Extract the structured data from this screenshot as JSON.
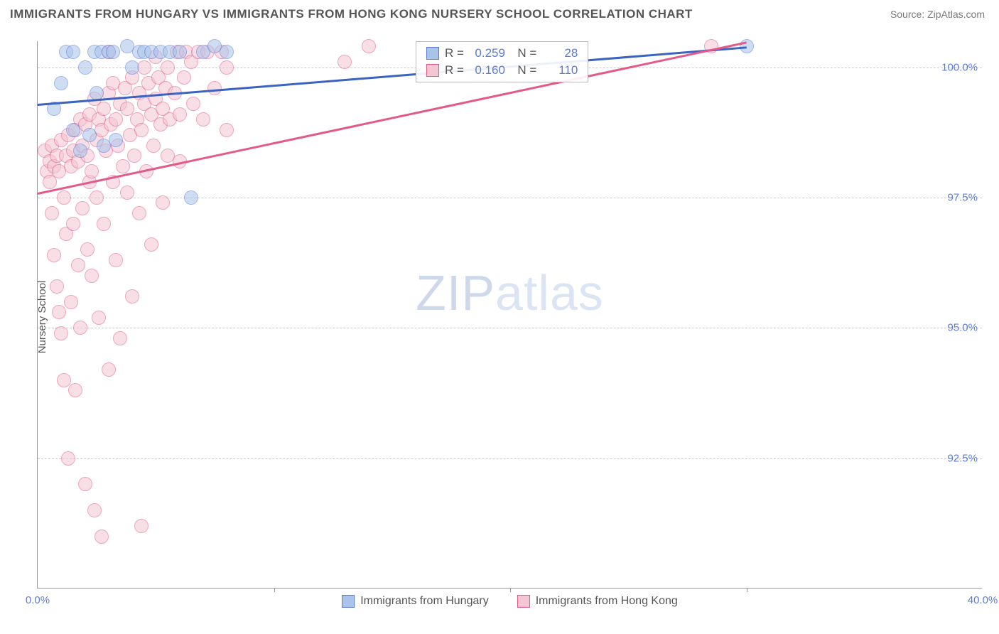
{
  "title": "IMMIGRANTS FROM HUNGARY VS IMMIGRANTS FROM HONG KONG NURSERY SCHOOL CORRELATION CHART",
  "source_label": "Source:",
  "source_name": "ZipAtlas.com",
  "ylabel": "Nursery School",
  "watermark_bold": "ZIP",
  "watermark_light": "atlas",
  "chart": {
    "type": "scatter",
    "xlim": [
      0,
      40
    ],
    "ylim": [
      90,
      100.5
    ],
    "xticks": [
      {
        "pos": 0,
        "label": "0.0%"
      },
      {
        "pos": 40,
        "label": "40.0%"
      }
    ],
    "xminor": [
      10,
      20,
      30
    ],
    "yticks": [
      {
        "pos": 92.5,
        "label": "92.5%"
      },
      {
        "pos": 95.0,
        "label": "95.0%"
      },
      {
        "pos": 97.5,
        "label": "97.5%"
      },
      {
        "pos": 100.0,
        "label": "100.0%"
      }
    ],
    "background_color": "#ffffff",
    "grid_color": "#cccccc",
    "marker_radius": 10,
    "marker_opacity": 0.55,
    "series": [
      {
        "name": "Immigrants from Hungary",
        "color_fill": "#a9c3ea",
        "color_stroke": "#5b7bd6",
        "trend": {
          "x1": 0,
          "y1": 99.3,
          "x2": 30,
          "y2": 100.4,
          "color": "#3a63c2",
          "width": 3
        },
        "stats": {
          "R": "0.259",
          "N": "28"
        },
        "points": [
          [
            0.7,
            99.2
          ],
          [
            1.0,
            99.7
          ],
          [
            1.2,
            100.3
          ],
          [
            1.5,
            98.8
          ],
          [
            1.5,
            100.3
          ],
          [
            1.8,
            98.4
          ],
          [
            2.0,
            100.0
          ],
          [
            2.2,
            98.7
          ],
          [
            2.4,
            100.3
          ],
          [
            2.5,
            99.5
          ],
          [
            2.7,
            100.3
          ],
          [
            2.8,
            98.5
          ],
          [
            3.0,
            100.3
          ],
          [
            3.2,
            100.3
          ],
          [
            3.3,
            98.6
          ],
          [
            3.8,
            100.4
          ],
          [
            4.0,
            100.0
          ],
          [
            4.3,
            100.3
          ],
          [
            4.5,
            100.3
          ],
          [
            4.8,
            100.3
          ],
          [
            5.2,
            100.3
          ],
          [
            5.6,
            100.3
          ],
          [
            6.0,
            100.3
          ],
          [
            6.5,
            97.5
          ],
          [
            7.0,
            100.3
          ],
          [
            7.5,
            100.4
          ],
          [
            8.0,
            100.3
          ],
          [
            30.0,
            100.4
          ]
        ]
      },
      {
        "name": "Immigrants from Hong Kong",
        "color_fill": "#f4c5d3",
        "color_stroke": "#e35a8a",
        "trend": {
          "x1": 0,
          "y1": 97.6,
          "x2": 30,
          "y2": 100.5,
          "color": "#e35a8a",
          "width": 3
        },
        "stats": {
          "R": "0.160",
          "N": "110"
        },
        "points": [
          [
            0.3,
            98.4
          ],
          [
            0.4,
            98.0
          ],
          [
            0.5,
            98.2
          ],
          [
            0.5,
            97.8
          ],
          [
            0.6,
            98.5
          ],
          [
            0.6,
            97.2
          ],
          [
            0.7,
            98.1
          ],
          [
            0.7,
            96.4
          ],
          [
            0.8,
            98.3
          ],
          [
            0.8,
            95.8
          ],
          [
            0.9,
            98.0
          ],
          [
            0.9,
            95.3
          ],
          [
            1.0,
            98.6
          ],
          [
            1.0,
            94.9
          ],
          [
            1.1,
            97.5
          ],
          [
            1.1,
            94.0
          ],
          [
            1.2,
            98.3
          ],
          [
            1.2,
            96.8
          ],
          [
            1.3,
            98.7
          ],
          [
            1.3,
            92.5
          ],
          [
            1.4,
            98.1
          ],
          [
            1.4,
            95.5
          ],
          [
            1.5,
            98.4
          ],
          [
            1.5,
            97.0
          ],
          [
            1.6,
            98.8
          ],
          [
            1.6,
            93.8
          ],
          [
            1.7,
            98.2
          ],
          [
            1.7,
            96.2
          ],
          [
            1.8,
            99.0
          ],
          [
            1.8,
            95.0
          ],
          [
            1.9,
            98.5
          ],
          [
            1.9,
            97.3
          ],
          [
            2.0,
            98.9
          ],
          [
            2.0,
            92.0
          ],
          [
            2.1,
            96.5
          ],
          [
            2.1,
            98.3
          ],
          [
            2.2,
            97.8
          ],
          [
            2.2,
            99.1
          ],
          [
            2.3,
            98.0
          ],
          [
            2.3,
            96.0
          ],
          [
            2.4,
            99.4
          ],
          [
            2.4,
            91.5
          ],
          [
            2.5,
            98.6
          ],
          [
            2.5,
            97.5
          ],
          [
            2.6,
            99.0
          ],
          [
            2.6,
            95.2
          ],
          [
            2.7,
            98.8
          ],
          [
            2.7,
            91.0
          ],
          [
            2.8,
            99.2
          ],
          [
            2.8,
            97.0
          ],
          [
            2.9,
            98.4
          ],
          [
            3.0,
            99.5
          ],
          [
            3.0,
            94.2
          ],
          [
            3.1,
            98.9
          ],
          [
            3.2,
            97.8
          ],
          [
            3.2,
            99.7
          ],
          [
            3.3,
            99.0
          ],
          [
            3.3,
            96.3
          ],
          [
            3.4,
            98.5
          ],
          [
            3.5,
            99.3
          ],
          [
            3.5,
            94.8
          ],
          [
            3.6,
            98.1
          ],
          [
            3.7,
            99.6
          ],
          [
            3.8,
            97.6
          ],
          [
            3.8,
            99.2
          ],
          [
            3.9,
            98.7
          ],
          [
            4.0,
            99.8
          ],
          [
            4.0,
            95.6
          ],
          [
            4.1,
            98.3
          ],
          [
            4.2,
            99.0
          ],
          [
            4.3,
            99.5
          ],
          [
            4.3,
            97.2
          ],
          [
            4.4,
            98.8
          ],
          [
            4.4,
            91.2
          ],
          [
            4.5,
            99.3
          ],
          [
            4.5,
            100.0
          ],
          [
            4.6,
            98.0
          ],
          [
            4.7,
            99.7
          ],
          [
            4.8,
            99.1
          ],
          [
            4.8,
            96.6
          ],
          [
            4.9,
            98.5
          ],
          [
            5.0,
            99.4
          ],
          [
            5.0,
            100.2
          ],
          [
            5.1,
            99.8
          ],
          [
            5.2,
            98.9
          ],
          [
            5.3,
            99.2
          ],
          [
            5.3,
            97.4
          ],
          [
            5.4,
            99.6
          ],
          [
            5.5,
            98.3
          ],
          [
            5.5,
            100.0
          ],
          [
            5.6,
            99.0
          ],
          [
            5.8,
            99.5
          ],
          [
            5.9,
            100.3
          ],
          [
            6.0,
            99.1
          ],
          [
            6.0,
            98.2
          ],
          [
            6.2,
            99.8
          ],
          [
            6.3,
            100.3
          ],
          [
            6.5,
            100.1
          ],
          [
            6.6,
            99.3
          ],
          [
            6.8,
            100.3
          ],
          [
            7.0,
            99.0
          ],
          [
            7.2,
            100.3
          ],
          [
            7.5,
            99.6
          ],
          [
            7.8,
            100.3
          ],
          [
            8.0,
            98.8
          ],
          [
            8.0,
            100.0
          ],
          [
            28.5,
            100.4
          ],
          [
            13.0,
            100.1
          ],
          [
            14.0,
            100.4
          ],
          [
            3.0,
            100.3
          ]
        ]
      }
    ]
  },
  "legend": {
    "items": [
      {
        "label": "Immigrants from Hungary",
        "fill": "#a9c3ea",
        "stroke": "#5b7bd6"
      },
      {
        "label": "Immigrants from Hong Kong",
        "fill": "#f4c5d3",
        "stroke": "#e35a8a"
      }
    ]
  }
}
